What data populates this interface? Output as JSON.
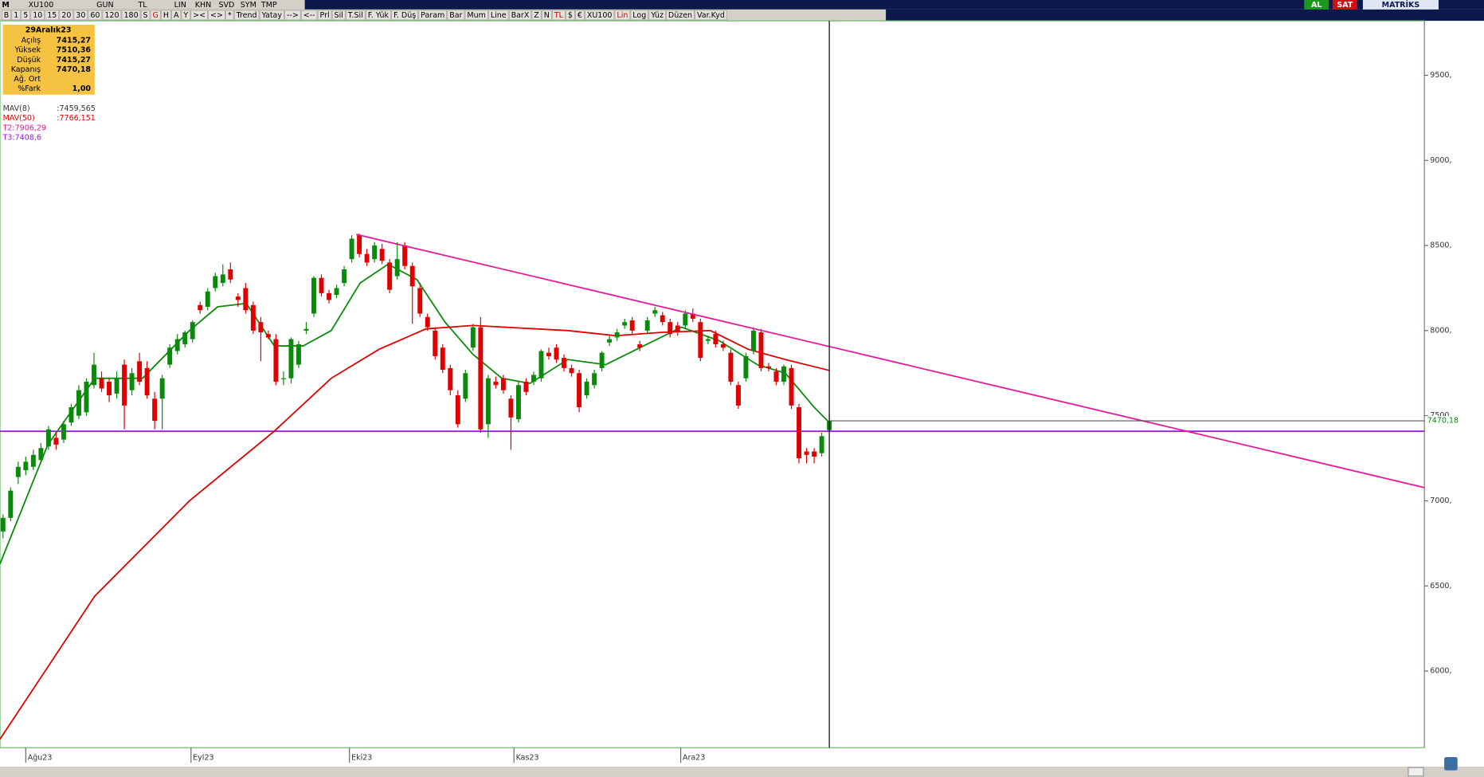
{
  "toolbar": {
    "row1": [
      "M",
      "XU100",
      "GUN",
      "TL",
      "LIN",
      "KHN",
      "SVD",
      "SYM",
      "TMP"
    ],
    "row2": [
      "B",
      "1",
      "5",
      "10",
      "15",
      "20",
      "30",
      "60",
      "120",
      "180",
      "S",
      "G",
      "H",
      "A",
      "Y",
      "><",
      "<>",
      "*",
      "Trend",
      "Yatay",
      "-->",
      "<--",
      "Prl",
      "Sil",
      "T.Sil",
      "F. Yük",
      "F. Düş",
      "Param",
      "Bar",
      "Mum",
      "Line",
      "BarX",
      "Z",
      "N",
      "TL",
      "$",
      "€",
      "XU100",
      "Lin",
      "Log",
      "Yüz",
      "Düzen",
      "Var.Kyd"
    ],
    "right": [
      "AL",
      "SAT",
      "MATRİKS"
    ]
  },
  "info_box": {
    "date": "29Aralık23",
    "rows": [
      [
        "Açılış",
        "7415,27"
      ],
      [
        "Yüksek",
        "7510,36"
      ],
      [
        "Düşük",
        "7415,27"
      ],
      [
        "Kapanış",
        "7470,18"
      ],
      [
        "Ağ. Ort",
        ""
      ],
      [
        "%Fark",
        "1,00"
      ]
    ]
  },
  "chart_data": {
    "type": "candlestick",
    "xlim": [
      -0.4,
      187.5
    ],
    "ylim": [
      5550,
      9820
    ],
    "xticks": [
      {
        "value": 3,
        "label": "Ağu23"
      },
      {
        "value": 24.8,
        "label": "Eyl23"
      },
      {
        "value": 45.7,
        "label": "Eki23"
      },
      {
        "value": 67.4,
        "label": "Kas23"
      },
      {
        "value": 89.4,
        "label": "Ara23"
      }
    ],
    "yticks": [
      {
        "value": 6000,
        "label": "6000,"
      },
      {
        "value": 6500,
        "label": "6500,"
      },
      {
        "value": 7000,
        "label": "7000,"
      },
      {
        "value": 7500,
        "label": "7500,"
      },
      {
        "value": 8000,
        "label": "8000,"
      },
      {
        "value": 8500,
        "label": "8500,"
      },
      {
        "value": 9000,
        "label": "9000,"
      },
      {
        "value": 9500,
        "label": "9500,"
      }
    ],
    "up_color": "#0a8a0a",
    "down_color": "#e00000",
    "candles": [
      [
        6820,
        6920,
        6780,
        6900
      ],
      [
        6900,
        7080,
        6880,
        7060
      ],
      [
        7140,
        7230,
        7100,
        7200
      ],
      [
        7180,
        7260,
        7150,
        7230
      ],
      [
        7200,
        7300,
        7180,
        7270
      ],
      [
        7240,
        7340,
        7220,
        7310
      ],
      [
        7320,
        7440,
        7300,
        7420
      ],
      [
        7370,
        7400,
        7300,
        7330
      ],
      [
        7360,
        7470,
        7340,
        7450
      ],
      [
        7460,
        7570,
        7440,
        7550
      ],
      [
        7500,
        7680,
        7480,
        7650
      ],
      [
        7520,
        7720,
        7500,
        7700
      ],
      [
        7680,
        7870,
        7660,
        7800
      ],
      [
        7720,
        7760,
        7640,
        7660
      ],
      [
        7700,
        7720,
        7580,
        7620
      ],
      [
        7630,
        7760,
        7600,
        7720
      ],
      [
        7800,
        7830,
        7420,
        7560
      ],
      [
        7650,
        7780,
        7620,
        7750
      ],
      [
        7820,
        7870,
        7680,
        7700
      ],
      [
        7780,
        7820,
        7600,
        7620
      ],
      [
        7600,
        7640,
        7420,
        7470
      ],
      [
        7600,
        7740,
        7420,
        7720
      ],
      [
        7800,
        7920,
        7780,
        7900
      ],
      [
        7880,
        7980,
        7860,
        7950
      ],
      [
        7920,
        8000,
        7900,
        7990
      ],
      [
        7950,
        8060,
        7930,
        8050
      ],
      [
        8150,
        8170,
        8100,
        8120
      ],
      [
        8140,
        8250,
        8120,
        8230
      ],
      [
        8250,
        8340,
        8230,
        8320
      ],
      [
        8280,
        8390,
        8260,
        8330
      ],
      [
        8360,
        8400,
        8280,
        8300
      ],
      [
        8200,
        8220,
        8140,
        8180
      ],
      [
        8250,
        8280,
        8100,
        8120
      ],
      [
        8150,
        8170,
        7980,
        8000
      ],
      [
        8050,
        8080,
        7820,
        7990
      ],
      [
        7980,
        8000,
        7950,
        7960
      ],
      [
        7950,
        7980,
        7680,
        7700
      ],
      [
        7720,
        7760,
        7680,
        7720
      ],
      [
        7720,
        7960,
        7690,
        7950
      ],
      [
        7800,
        7940,
        7780,
        7920
      ],
      [
        8000,
        8050,
        7980,
        8010
      ],
      [
        8100,
        8320,
        8080,
        8310
      ],
      [
        8310,
        8330,
        8200,
        8220
      ],
      [
        8220,
        8240,
        8160,
        8180
      ],
      [
        8210,
        8270,
        8190,
        8250
      ],
      [
        8280,
        8380,
        8260,
        8360
      ],
      [
        8420,
        8560,
        8400,
        8540
      ],
      [
        8560,
        8570,
        8430,
        8450
      ],
      [
        8450,
        8480,
        8380,
        8400
      ],
      [
        8420,
        8520,
        8400,
        8500
      ],
      [
        8480,
        8510,
        8390,
        8410
      ],
      [
        8400,
        8420,
        8220,
        8240
      ],
      [
        8320,
        8520,
        8300,
        8420
      ],
      [
        8500,
        8520,
        8360,
        8380
      ],
      [
        8380,
        8400,
        8040,
        8260
      ],
      [
        8250,
        8280,
        8080,
        8100
      ],
      [
        8080,
        8100,
        8000,
        8020
      ],
      [
        8000,
        8020,
        7830,
        7850
      ],
      [
        7900,
        7920,
        7750,
        7770
      ],
      [
        7780,
        7800,
        7620,
        7650
      ],
      [
        7620,
        7650,
        7430,
        7450
      ],
      [
        7600,
        7770,
        7580,
        7750
      ],
      [
        7900,
        8040,
        7880,
        8020
      ],
      [
        8020,
        8080,
        7400,
        7420
      ],
      [
        7450,
        7740,
        7370,
        7720
      ],
      [
        7700,
        7730,
        7660,
        7680
      ],
      [
        7720,
        7740,
        7630,
        7650
      ],
      [
        7600,
        7620,
        7300,
        7490
      ],
      [
        7480,
        7700,
        7460,
        7680
      ],
      [
        7700,
        7720,
        7620,
        7640
      ],
      [
        7700,
        7760,
        7680,
        7740
      ],
      [
        7720,
        7890,
        7700,
        7880
      ],
      [
        7870,
        7900,
        7830,
        7850
      ],
      [
        7900,
        7920,
        7810,
        7830
      ],
      [
        7840,
        7860,
        7760,
        7780
      ],
      [
        7780,
        7800,
        7730,
        7750
      ],
      [
        7750,
        7770,
        7520,
        7550
      ],
      [
        7620,
        7720,
        7600,
        7700
      ],
      [
        7680,
        7770,
        7660,
        7750
      ],
      [
        7780,
        7880,
        7760,
        7870
      ],
      [
        7930,
        7970,
        7910,
        7950
      ],
      [
        7960,
        8010,
        7940,
        7990
      ],
      [
        8030,
        8070,
        8010,
        8050
      ],
      [
        8060,
        8080,
        7980,
        8000
      ],
      [
        7920,
        7940,
        7880,
        7900
      ],
      [
        8000,
        8080,
        7980,
        8060
      ],
      [
        8100,
        8140,
        8080,
        8120
      ],
      [
        8090,
        8110,
        8030,
        8050
      ],
      [
        8050,
        8070,
        7960,
        7980
      ],
      [
        8030,
        8050,
        7970,
        7990
      ],
      [
        8030,
        8120,
        8010,
        8100
      ],
      [
        8100,
        8130,
        8050,
        8070
      ],
      [
        8050,
        8070,
        7820,
        7840
      ],
      [
        7940,
        7970,
        7920,
        7950
      ],
      [
        7980,
        8000,
        7900,
        7920
      ],
      [
        7920,
        7940,
        7880,
        7900
      ],
      [
        7870,
        7890,
        7680,
        7700
      ],
      [
        7680,
        7700,
        7540,
        7560
      ],
      [
        7720,
        7870,
        7700,
        7850
      ],
      [
        7880,
        8020,
        7860,
        8000
      ],
      [
        7990,
        8010,
        7760,
        7780
      ],
      [
        7790,
        7810,
        7760,
        7780
      ],
      [
        7760,
        7780,
        7680,
        7700
      ],
      [
        7700,
        7800,
        7680,
        7790
      ],
      [
        7780,
        7800,
        7540,
        7560
      ],
      [
        7550,
        7570,
        7220,
        7250
      ],
      [
        7290,
        7310,
        7220,
        7270
      ],
      [
        7290,
        7310,
        7220,
        7260
      ],
      [
        7280,
        7400,
        7260,
        7380
      ],
      [
        7415.27,
        7510.36,
        7415.27,
        7470.18
      ]
    ],
    "series": [
      {
        "name": "MAV(8)",
        "legend_value": ":7459,565",
        "color": "#0a8a0a",
        "x": [
          -0.4,
          5.9,
          12.1,
          18.4,
          24.6,
          28.3,
          32.1,
          35.8,
          39.6,
          43.3,
          47.1,
          50.8,
          54.6,
          58.3,
          62.0,
          65.8,
          69.5,
          74.5,
          79.5,
          84.5,
          89.5,
          94.5,
          99.5,
          103.2,
          107.0,
          109
        ],
        "values": [
          6630,
          7330,
          7720,
          7720,
          8000,
          8140,
          8160,
          7910,
          7910,
          8000,
          8280,
          8390,
          8300,
          8050,
          7860,
          7720,
          7690,
          7830,
          7800,
          7910,
          8020,
          7940,
          7800,
          7750,
          7550,
          7459.565
        ]
      },
      {
        "name": "MAV(50)",
        "legend_value": ":7766,151",
        "color": "#e00000",
        "x": [
          -0.4,
          12.1,
          24.6,
          35.8,
          43.3,
          49.6,
          55.8,
          62.0,
          74.5,
          80.8,
          87.0,
          93.3,
          98.3,
          103.2,
          109
        ],
        "values": [
          5600,
          6440,
          7000,
          7410,
          7720,
          7890,
          8010,
          8030,
          8000,
          7970,
          7990,
          8000,
          7890,
          7830,
          7766.151
        ]
      }
    ],
    "lines": [
      {
        "label": "T2:7906,29",
        "color": "#e8189a",
        "x": [
          46.6,
          187.5
        ],
        "values": [
          8565,
          7078
        ]
      },
      {
        "label": "T3:7408,6",
        "color": "#9a1ae0",
        "value": 7408.6
      }
    ],
    "last_price": {
      "value": 7470.18,
      "label": "7470,18"
    }
  }
}
